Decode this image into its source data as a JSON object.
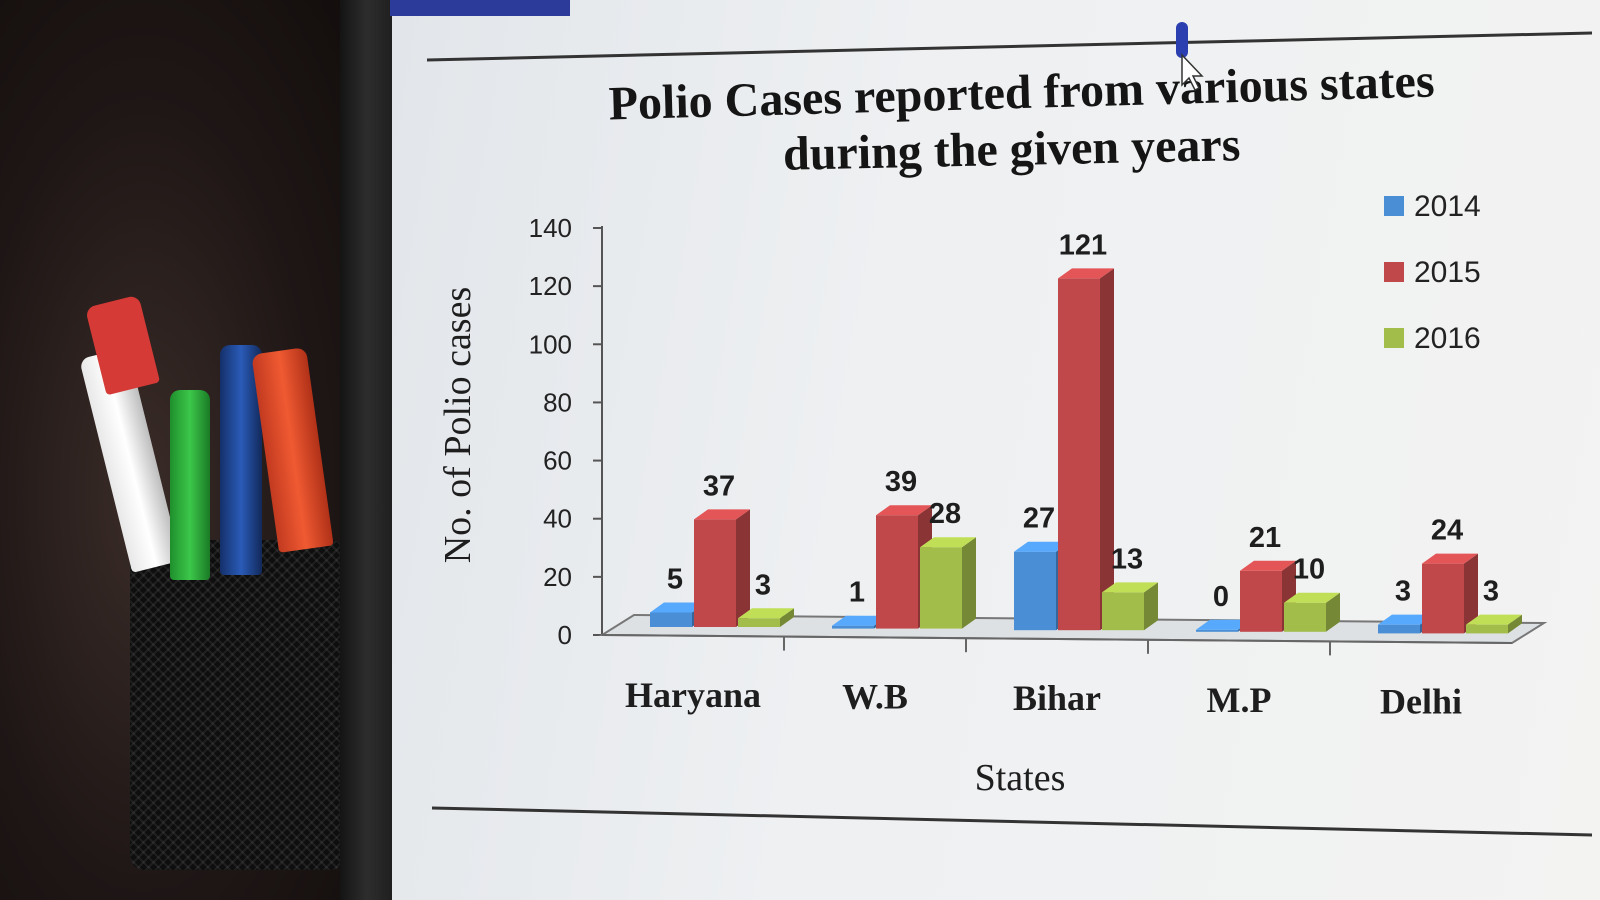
{
  "chart_data": {
    "type": "bar",
    "title": "Polio Cases reported from various states during the given years",
    "title_lines": [
      "Polio Cases reported from various states",
      "during the given years"
    ],
    "xlabel": "States",
    "ylabel": "No. of Polio cases",
    "ylim": [
      0,
      140
    ],
    "yticks": [
      0,
      20,
      40,
      60,
      80,
      100,
      120,
      140
    ],
    "categories": [
      "Haryana",
      "W.B",
      "Bihar",
      "M.P",
      "Delhi"
    ],
    "series": [
      {
        "name": "2014",
        "values": [
          5,
          1,
          27,
          0,
          3
        ],
        "color": "#4a8fd6"
      },
      {
        "name": "2015",
        "values": [
          37,
          39,
          121,
          21,
          24
        ],
        "color": "#c0484a"
      },
      {
        "name": "2016",
        "values": [
          3,
          28,
          13,
          10,
          3
        ],
        "color": "#a3bd4a"
      }
    ],
    "legend_position": "top-right",
    "grid": false,
    "style": "3d-clustered-column"
  }
}
